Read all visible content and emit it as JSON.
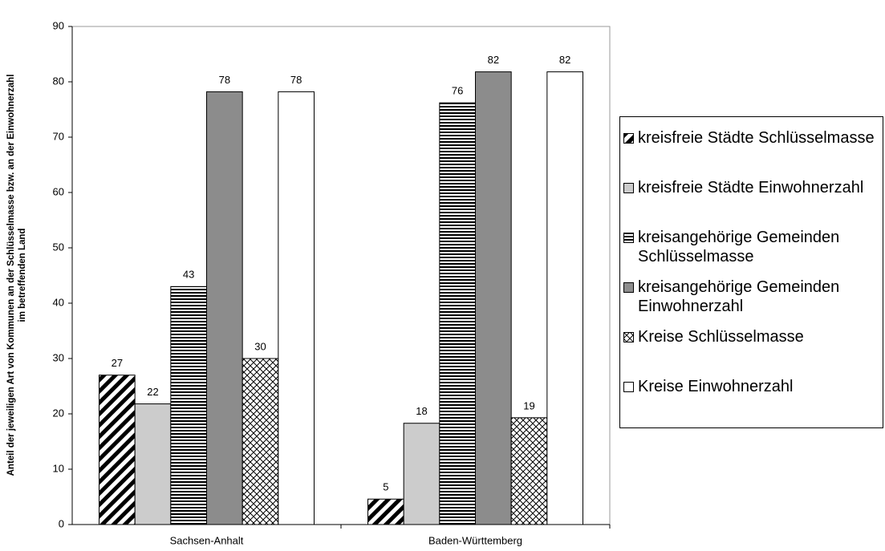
{
  "chart_data": {
    "type": "bar",
    "y_label": "Anteil der jeweiligen Art von Kommunen an der Schlüsselmasse bzw. an der Einwohnerzahl",
    "y_label_2": "im betreffenden Land",
    "categories": [
      "Sachsen-Anhalt",
      "Baden-Württemberg"
    ],
    "series": [
      {
        "name": "kreisfreie Städte Schlüsselmasse",
        "color": "#000000",
        "pattern": "diagonal",
        "values": [
          27,
          4.6
        ],
        "value_labels": [
          "27",
          "5"
        ]
      },
      {
        "name": "kreisfreie Städte Einwohnerzahl",
        "color": "#cccccc",
        "pattern": null,
        "values": [
          21.8,
          18.3
        ],
        "value_labels": [
          "22",
          "18"
        ]
      },
      {
        "name": "kreisangehörige Gemeinden Schlüsselmasse",
        "color": "#000000",
        "pattern": "horizontal",
        "values": [
          43,
          76.2
        ],
        "value_labels": [
          "43",
          "76"
        ]
      },
      {
        "name": "kreisangehörige Gemeinden Einwohnerzahl",
        "color": "#8c8c8c",
        "pattern": null,
        "values": [
          78.2,
          81.8
        ],
        "value_labels": [
          "78",
          "82"
        ]
      },
      {
        "name": "Kreise Schlüsselmasse",
        "color": "#000000",
        "pattern": "crosshatch",
        "values": [
          30,
          19.3
        ],
        "value_labels": [
          "30",
          "19"
        ]
      },
      {
        "name": "Kreise Einwohnerzahl",
        "color": "#ffffff",
        "pattern": null,
        "values": [
          78.2,
          81.8
        ],
        "value_labels": [
          "78",
          "82"
        ]
      }
    ],
    "ylim": [
      0,
      90
    ],
    "yticks": [
      0,
      10,
      20,
      30,
      40,
      50,
      60,
      70,
      80,
      90
    ],
    "grid": false,
    "legend": "right"
  }
}
